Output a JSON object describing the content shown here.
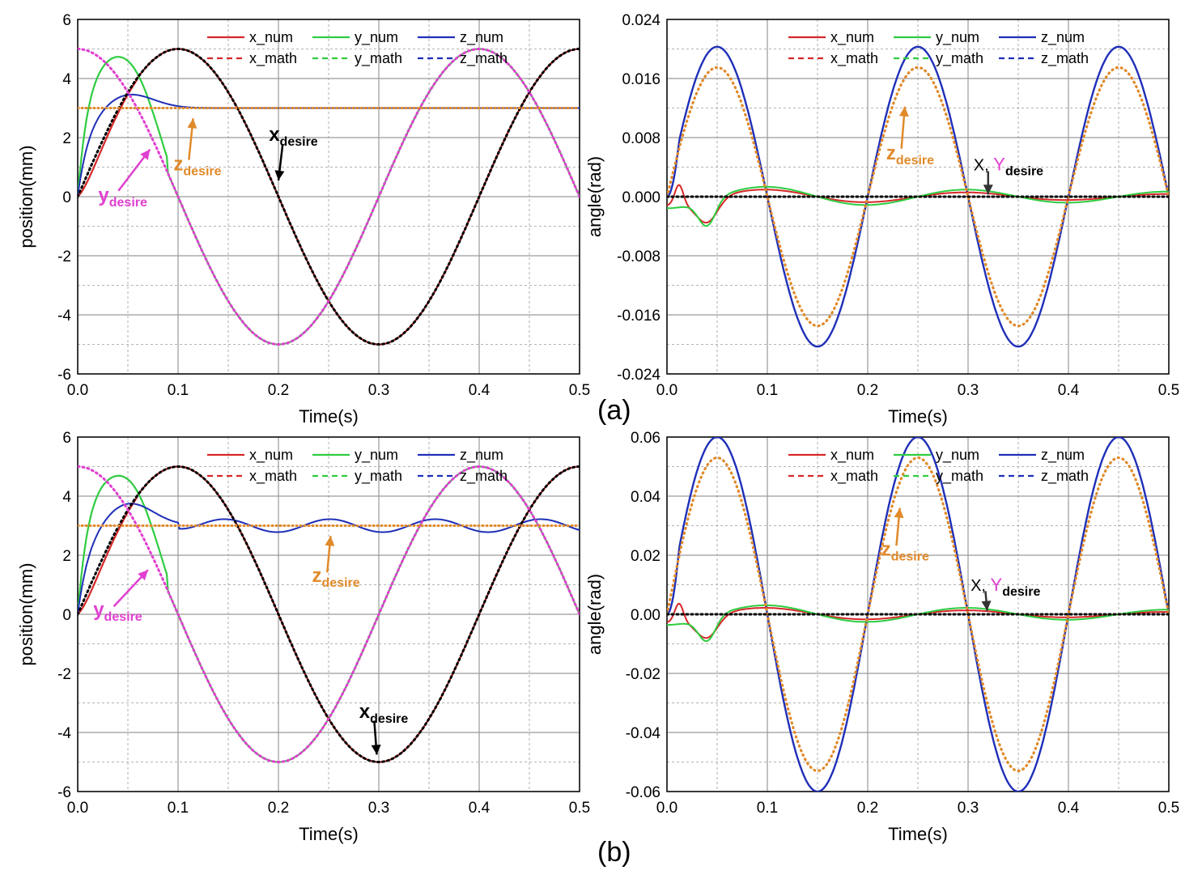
{
  "figure": {
    "panel_labels": [
      "(a)",
      "(b)"
    ]
  },
  "legend_labels": {
    "x_num": "x_num",
    "y_num": "y_num",
    "z_num": "z_num",
    "x_math": "x_math",
    "y_math": "y_math",
    "z_math": "z_math"
  },
  "colors": {
    "x": "#d62728",
    "y": "#2ecc40",
    "z": "#1f2fb8",
    "x_desire": "#000000",
    "y_desire": "#e040d0",
    "z_desire": "#e08a2a",
    "grid": "#9a9a9a"
  },
  "chart_data": [
    {
      "type": "line",
      "panel": "a-left",
      "xlabel": "Time(s)",
      "ylabel": "position(mm)",
      "xlim": [
        0,
        0.5
      ],
      "ylim": [
        -6,
        6
      ],
      "xticks": [
        "0.0",
        "0.1",
        "0.2",
        "0.3",
        "0.4",
        "0.5"
      ],
      "yticks": [
        "-6",
        "-4",
        "-2",
        "0",
        "2",
        "4",
        "6"
      ],
      "grid": true,
      "legend_position": "top-center",
      "amplitude": 5,
      "period": 0.4,
      "z_desired": 3,
      "z_osc": 0,
      "z_peak": 3.5,
      "y_peak": 5.1,
      "annotations": [
        {
          "label": "x",
          "sub": "desire",
          "x": 0.205,
          "y": 2.0,
          "tip_x": 0.2,
          "tip_y": 0.55
        },
        {
          "label": "z",
          "sub": "desire",
          "x": 0.11,
          "y": 1.0,
          "tip_x": 0.115,
          "tip_y": 2.65
        },
        {
          "label": "y",
          "sub": "desire",
          "x": 0.035,
          "y": -0.05,
          "tip_x": 0.072,
          "tip_y": 1.6
        }
      ]
    },
    {
      "type": "line",
      "panel": "a-right",
      "xlabel": "Time(s)",
      "ylabel": "angle(rad)",
      "xlim": [
        0,
        0.5
      ],
      "ylim": [
        -0.024,
        0.024
      ],
      "xticks": [
        "0.0",
        "0.1",
        "0.2",
        "0.3",
        "0.4",
        "0.5"
      ],
      "yticks": [
        "-0.024",
        "-0.016",
        "-0.008",
        "0.000",
        "0.008",
        "0.016",
        "0.024"
      ],
      "grid": true,
      "legend_position": "top-center",
      "z_amplitude": 0.0203,
      "z_desired_amplitude": 0.0175,
      "period": 0.2,
      "xy_scale": 0.0035,
      "annotations": [
        {
          "label": "z",
          "sub": "desire",
          "x": 0.233,
          "y": 0.0055,
          "tip_x": 0.237,
          "tip_y": 0.0122
        },
        {
          "label": "X, ",
          "label2": "Y",
          "sub": "desire",
          "x": 0.32,
          "y": 0.004,
          "tip_x": 0.32,
          "tip_y": 0.0003
        }
      ]
    },
    {
      "type": "line",
      "panel": "b-left",
      "xlabel": "Time(s)",
      "ylabel": "position(mm)",
      "xlim": [
        0,
        0.5
      ],
      "ylim": [
        -6,
        6
      ],
      "xticks": [
        "0.0",
        "0.1",
        "0.2",
        "0.3",
        "0.4",
        "0.5"
      ],
      "yticks": [
        "-6",
        "-4",
        "-2",
        "0",
        "2",
        "4",
        "6"
      ],
      "grid": true,
      "legend_position": "top-center",
      "amplitude": 5,
      "period": 0.4,
      "z_desired": 3,
      "z_osc": 0.22,
      "z_peak": 3.8,
      "y_peak": 5.05,
      "annotations": [
        {
          "label": "x",
          "sub": "desire",
          "x": 0.295,
          "y": -3.4,
          "tip_x": 0.298,
          "tip_y": -4.75
        },
        {
          "label": "z",
          "sub": "desire",
          "x": 0.248,
          "y": 1.2,
          "tip_x": 0.252,
          "tip_y": 2.65
        },
        {
          "label": "y",
          "sub": "desire",
          "x": 0.03,
          "y": 0.05,
          "tip_x": 0.07,
          "tip_y": 1.5
        }
      ]
    },
    {
      "type": "line",
      "panel": "b-right",
      "xlabel": "Time(s)",
      "ylabel": "angle(rad)",
      "xlim": [
        0,
        0.5
      ],
      "ylim": [
        -0.06,
        0.06
      ],
      "xticks": [
        "0.0",
        "0.1",
        "0.2",
        "0.3",
        "0.4",
        "0.5"
      ],
      "yticks": [
        "-0.06",
        "-0.04",
        "-0.02",
        "0.00",
        "0.02",
        "0.04",
        "0.06"
      ],
      "grid": true,
      "legend_position": "top-center",
      "z_amplitude": 0.06,
      "z_desired_amplitude": 0.053,
      "period": 0.2,
      "xy_scale": 0.008,
      "annotations": [
        {
          "label": "z",
          "sub": "desire",
          "x": 0.228,
          "y": 0.021,
          "tip_x": 0.232,
          "tip_y": 0.036
        },
        {
          "label": "X, ",
          "label2": "Y",
          "sub": "desire",
          "x": 0.317,
          "y": 0.009,
          "tip_x": 0.319,
          "tip_y": 0.0012
        }
      ]
    }
  ]
}
